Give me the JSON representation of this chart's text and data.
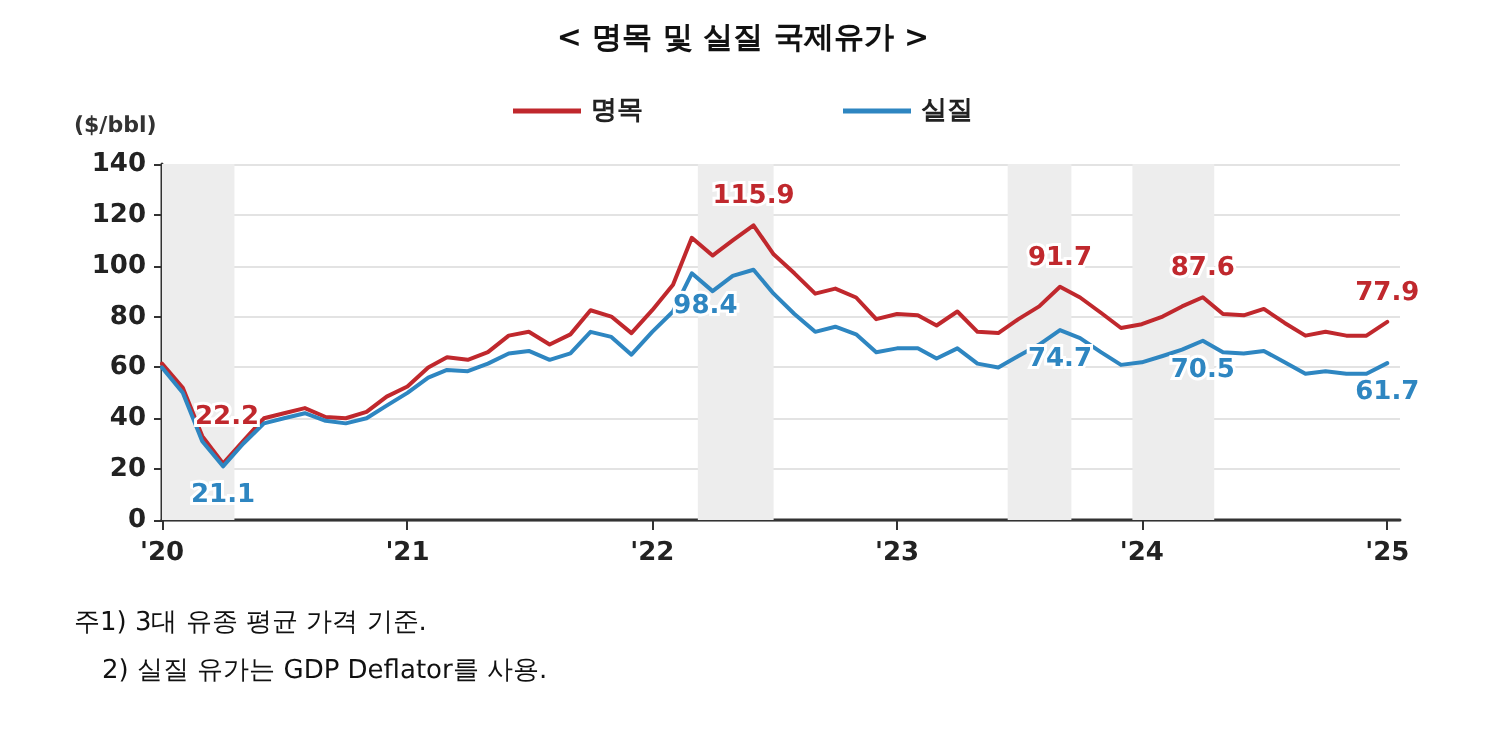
{
  "chart_data": {
    "type": "line",
    "title": "< 명목 및 실질 국제유가 >",
    "ylabel": "($/bbl)",
    "x": [
      "2020-01",
      "2020-02",
      "2020-03",
      "2020-04",
      "2020-05",
      "2020-06",
      "2020-07",
      "2020-08",
      "2020-09",
      "2020-10",
      "2020-11",
      "2020-12",
      "2021-01",
      "2021-02",
      "2021-03",
      "2021-04",
      "2021-05",
      "2021-06",
      "2021-07",
      "2021-08",
      "2021-09",
      "2021-10",
      "2021-11",
      "2021-12",
      "2022-01",
      "2022-02",
      "2022-03",
      "2022-04",
      "2022-05",
      "2022-06",
      "2022-07",
      "2022-08",
      "2022-09",
      "2022-10",
      "2022-11",
      "2022-12",
      "2023-01",
      "2023-02",
      "2023-03",
      "2023-04",
      "2023-05",
      "2023-06",
      "2023-07",
      "2023-08",
      "2023-09",
      "2023-10",
      "2023-11",
      "2023-12",
      "2024-01",
      "2024-02",
      "2024-03",
      "2024-04",
      "2024-05",
      "2024-06",
      "2024-07",
      "2024-08",
      "2024-09",
      "2024-10",
      "2024-11",
      "2024-12",
      "2025-01"
    ],
    "series": [
      {
        "name": "명목",
        "color": "#c0282d",
        "values": [
          61.5,
          52,
          33,
          22.2,
          31,
          40,
          42,
          44,
          40.5,
          40,
          42.5,
          48.5,
          52.5,
          60,
          64,
          63,
          66,
          72.5,
          74,
          69,
          73,
          82.5,
          80,
          73.5,
          82.5,
          92.5,
          111,
          104,
          110,
          115.9,
          104.5,
          97,
          89,
          91,
          87.5,
          79,
          81,
          80.5,
          76.5,
          82,
          74,
          73.5,
          79,
          84,
          91.7,
          87.5,
          81.5,
          75.5,
          77,
          80,
          84,
          87.6,
          81,
          80.5,
          83,
          77.5,
          72.5,
          74,
          72.5,
          72.5,
          77.9
        ],
        "value_labels": [
          null,
          null,
          null,
          "22.2",
          null,
          null,
          null,
          null,
          null,
          null,
          null,
          null,
          null,
          null,
          null,
          null,
          null,
          null,
          null,
          null,
          null,
          null,
          null,
          null,
          null,
          null,
          null,
          null,
          null,
          "115.9",
          null,
          null,
          null,
          null,
          null,
          null,
          null,
          null,
          null,
          null,
          null,
          null,
          null,
          null,
          "91.7",
          null,
          null,
          null,
          null,
          null,
          null,
          "87.6",
          null,
          null,
          null,
          null,
          null,
          null,
          null,
          null,
          "77.9"
        ]
      },
      {
        "name": "실질",
        "color": "#2e86c1",
        "values": [
          60,
          50,
          31,
          21.1,
          30,
          38,
          40,
          42,
          39,
          38,
          40,
          45,
          50,
          56,
          59,
          58.5,
          61.5,
          65.5,
          66.5,
          63,
          65.5,
          74,
          72,
          65,
          74,
          82,
          97,
          90,
          96,
          98.4,
          89,
          81,
          74,
          76,
          73,
          66,
          67.5,
          67.5,
          63.5,
          67.5,
          61.5,
          60,
          64.5,
          69,
          74.7,
          71.5,
          66,
          61,
          62,
          64.5,
          67,
          70.5,
          66,
          65.5,
          66.5,
          62,
          57.5,
          58.5,
          57.5,
          57.5,
          61.7
        ],
        "value_labels": [
          null,
          null,
          null,
          "21.1",
          null,
          null,
          null,
          null,
          null,
          null,
          null,
          null,
          null,
          null,
          null,
          null,
          null,
          null,
          null,
          null,
          null,
          null,
          null,
          null,
          null,
          null,
          null,
          null,
          null,
          "98.4",
          null,
          null,
          null,
          null,
          null,
          null,
          null,
          null,
          null,
          null,
          null,
          null,
          null,
          null,
          "74.7",
          null,
          null,
          null,
          null,
          null,
          null,
          "70.5",
          null,
          null,
          null,
          null,
          null,
          null,
          null,
          null,
          "61.7"
        ]
      }
    ],
    "xlim": [
      "2020-01",
      "2025-01-20"
    ],
    "xticks": [
      {
        "value": "2020-01",
        "label": "'20"
      },
      {
        "value": "2021-01",
        "label": "'21"
      },
      {
        "value": "2022-01",
        "label": "'22"
      },
      {
        "value": "2023-01",
        "label": "'23"
      },
      {
        "value": "2024-01",
        "label": "'24"
      },
      {
        "value": "2025-01",
        "label": "'25"
      }
    ],
    "ylim": [
      0,
      140
    ],
    "yticks": [
      0,
      20,
      40,
      60,
      80,
      100,
      120,
      140
    ],
    "bands": [
      {
        "axis": "x",
        "from": "2020-01",
        "to": "2020-04-18",
        "color": "#ededed"
      },
      {
        "axis": "x",
        "from": "2022-03-10",
        "to": "2022-07",
        "color": "#ededed"
      },
      {
        "axis": "x",
        "from": "2023-06-15",
        "to": "2023-09-18",
        "color": "#ededed"
      },
      {
        "axis": "x",
        "from": "2023-12-18",
        "to": "2024-04-18",
        "color": "#ededed"
      }
    ],
    "grid": "y",
    "legend": "top",
    "marker": "none",
    "line_style": "solid",
    "annotations": [
      "주1) 3대 유종 평균 가격 기준.",
      "2) 실질 유가는 GDP Deflator를 사용."
    ]
  }
}
